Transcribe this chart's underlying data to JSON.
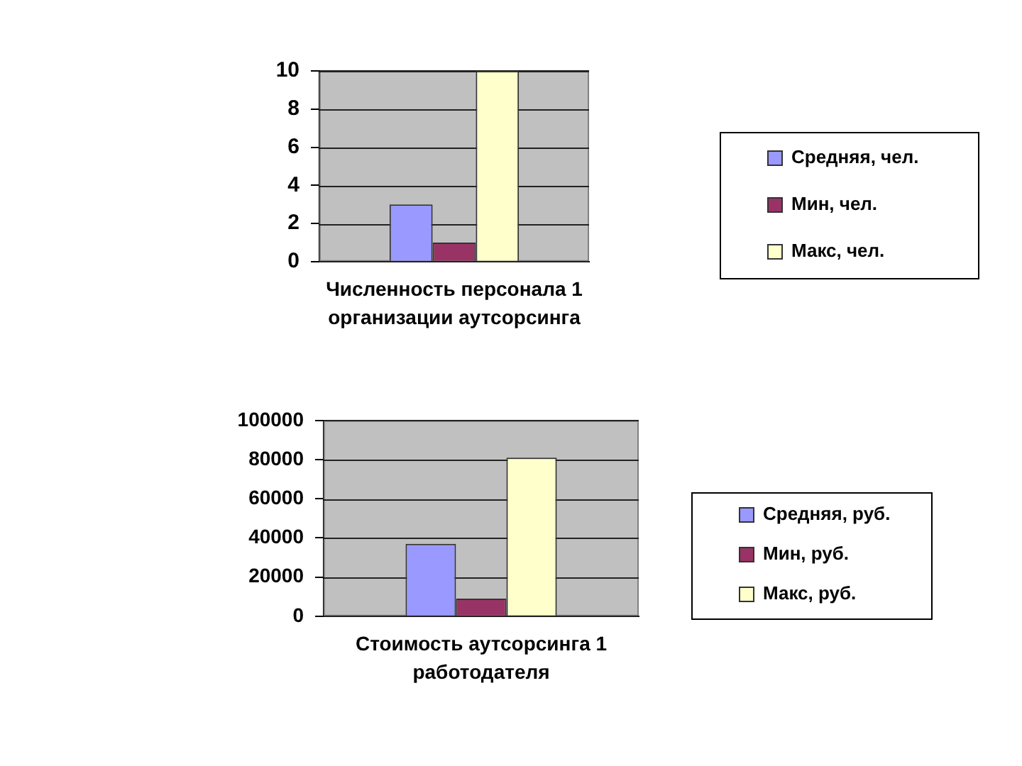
{
  "chart_data": [
    {
      "type": "bar",
      "categories": [
        "Численность персонала 1 организации аутсорсинга"
      ],
      "series": [
        {
          "name": "Средняя, чел.",
          "color": "#9999ff",
          "values": [
            3
          ]
        },
        {
          "name": "Мин, чел.",
          "color": "#993366",
          "values": [
            1
          ]
        },
        {
          "name": "Макс, чел.",
          "color": "#ffffcc",
          "values": [
            10
          ]
        }
      ],
      "ylim": [
        0,
        10
      ],
      "yticks": [
        0,
        2,
        4,
        6,
        8,
        10
      ],
      "grid": "y",
      "legend": "right"
    },
    {
      "type": "bar",
      "categories": [
        "Стоимость аутсорсинга 1 работодателя"
      ],
      "series": [
        {
          "name": "Средняя, руб.",
          "color": "#9999ff",
          "values": [
            37000
          ]
        },
        {
          "name": "Мин, руб.",
          "color": "#993366",
          "values": [
            9000
          ]
        },
        {
          "name": "Макс, руб.",
          "color": "#ffffcc",
          "values": [
            81000
          ]
        }
      ],
      "ylim": [
        0,
        100000
      ],
      "yticks": [
        0,
        20000,
        40000,
        60000,
        80000,
        100000
      ],
      "grid": "y",
      "legend": "right"
    }
  ]
}
